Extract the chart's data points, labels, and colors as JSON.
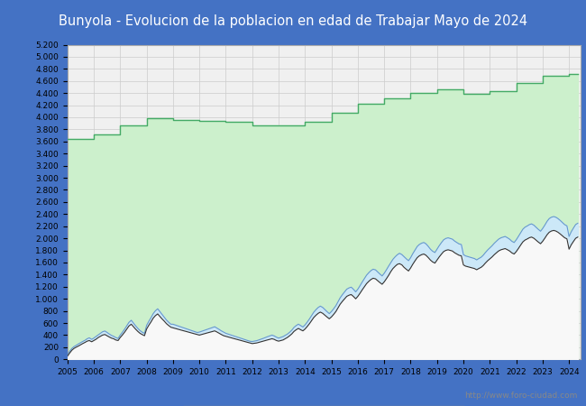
{
  "title": "Bunyola - Evolucion de la poblacion en edad de Trabajar Mayo de 2024",
  "title_bg_color": "#4472C4",
  "title_text_color": "white",
  "title_fontsize": 10.5,
  "ylim": [
    0,
    5200
  ],
  "ytick_step": 200,
  "xmin": 2005,
  "xmax": 2024.42,
  "watermark": "http://www.foro-ciudad.com",
  "grid_color": "#cccccc",
  "plot_bg_color": "#f0f0f0",
  "outer_bg_color": "#4472C4",
  "hab_color": "#ccf0cc",
  "hab_line_color": "#44aa66",
  "parados_color": "#cce8f8",
  "parados_line_color": "#6699cc",
  "ocupados_line_color": "#333333",
  "years_annual": [
    2005,
    2006,
    2007,
    2008,
    2009,
    2010,
    2011,
    2012,
    2013,
    2014,
    2015,
    2016,
    2017,
    2018,
    2019,
    2020,
    2021,
    2022,
    2023,
    2024
  ],
  "hab_16_64_annual": [
    3640,
    3720,
    3860,
    3980,
    3960,
    3940,
    3920,
    3870,
    3860,
    3920,
    4080,
    4230,
    4310,
    4400,
    4460,
    4390,
    4430,
    4570,
    4680,
    4720
  ],
  "years": [
    2005.0,
    2005.08,
    2005.17,
    2005.25,
    2005.33,
    2005.42,
    2005.5,
    2005.58,
    2005.67,
    2005.75,
    2005.83,
    2005.92,
    2006.0,
    2006.08,
    2006.17,
    2006.25,
    2006.33,
    2006.42,
    2006.5,
    2006.58,
    2006.67,
    2006.75,
    2006.83,
    2006.92,
    2007.0,
    2007.08,
    2007.17,
    2007.25,
    2007.33,
    2007.42,
    2007.5,
    2007.58,
    2007.67,
    2007.75,
    2007.83,
    2007.92,
    2008.0,
    2008.08,
    2008.17,
    2008.25,
    2008.33,
    2008.42,
    2008.5,
    2008.58,
    2008.67,
    2008.75,
    2008.83,
    2008.92,
    2009.0,
    2009.08,
    2009.17,
    2009.25,
    2009.33,
    2009.42,
    2009.5,
    2009.58,
    2009.67,
    2009.75,
    2009.83,
    2009.92,
    2010.0,
    2010.08,
    2010.17,
    2010.25,
    2010.33,
    2010.42,
    2010.5,
    2010.58,
    2010.67,
    2010.75,
    2010.83,
    2010.92,
    2011.0,
    2011.08,
    2011.17,
    2011.25,
    2011.33,
    2011.42,
    2011.5,
    2011.58,
    2011.67,
    2011.75,
    2011.83,
    2011.92,
    2012.0,
    2012.08,
    2012.17,
    2012.25,
    2012.33,
    2012.42,
    2012.5,
    2012.58,
    2012.67,
    2012.75,
    2012.83,
    2012.92,
    2013.0,
    2013.08,
    2013.17,
    2013.25,
    2013.33,
    2013.42,
    2013.5,
    2013.58,
    2013.67,
    2013.75,
    2013.83,
    2013.92,
    2014.0,
    2014.08,
    2014.17,
    2014.25,
    2014.33,
    2014.42,
    2014.5,
    2014.58,
    2014.67,
    2014.75,
    2014.83,
    2014.92,
    2015.0,
    2015.08,
    2015.17,
    2015.25,
    2015.33,
    2015.42,
    2015.5,
    2015.58,
    2015.67,
    2015.75,
    2015.83,
    2015.92,
    2016.0,
    2016.08,
    2016.17,
    2016.25,
    2016.33,
    2016.42,
    2016.5,
    2016.58,
    2016.67,
    2016.75,
    2016.83,
    2016.92,
    2017.0,
    2017.08,
    2017.17,
    2017.25,
    2017.33,
    2017.42,
    2017.5,
    2017.58,
    2017.67,
    2017.75,
    2017.83,
    2017.92,
    2018.0,
    2018.08,
    2018.17,
    2018.25,
    2018.33,
    2018.42,
    2018.5,
    2018.58,
    2018.67,
    2018.75,
    2018.83,
    2018.92,
    2019.0,
    2019.08,
    2019.17,
    2019.25,
    2019.33,
    2019.42,
    2019.5,
    2019.58,
    2019.67,
    2019.75,
    2019.83,
    2019.92,
    2020.0,
    2020.08,
    2020.17,
    2020.25,
    2020.33,
    2020.42,
    2020.5,
    2020.58,
    2020.67,
    2020.75,
    2020.83,
    2020.92,
    2021.0,
    2021.08,
    2021.17,
    2021.25,
    2021.33,
    2021.42,
    2021.5,
    2021.58,
    2021.67,
    2021.75,
    2021.83,
    2021.92,
    2022.0,
    2022.08,
    2022.17,
    2022.25,
    2022.33,
    2022.42,
    2022.5,
    2022.58,
    2022.67,
    2022.75,
    2022.83,
    2022.92,
    2023.0,
    2023.08,
    2023.17,
    2023.25,
    2023.33,
    2023.42,
    2023.5,
    2023.58,
    2023.67,
    2023.75,
    2023.83,
    2023.92,
    2024.0,
    2024.08,
    2024.17,
    2024.25,
    2024.33
  ],
  "ocupados": [
    50,
    100,
    150,
    180,
    200,
    220,
    240,
    260,
    280,
    300,
    310,
    290,
    310,
    330,
    360,
    380,
    400,
    410,
    390,
    370,
    350,
    340,
    320,
    310,
    360,
    400,
    450,
    500,
    550,
    580,
    540,
    500,
    460,
    430,
    410,
    390,
    500,
    560,
    620,
    680,
    720,
    750,
    710,
    670,
    630,
    590,
    560,
    530,
    520,
    510,
    500,
    490,
    480,
    470,
    460,
    450,
    440,
    430,
    420,
    410,
    400,
    410,
    420,
    430,
    440,
    450,
    460,
    470,
    450,
    430,
    410,
    390,
    380,
    370,
    360,
    350,
    340,
    330,
    320,
    310,
    300,
    290,
    280,
    270,
    260,
    265,
    270,
    280,
    290,
    300,
    310,
    320,
    330,
    340,
    330,
    310,
    300,
    310,
    320,
    340,
    360,
    390,
    420,
    460,
    490,
    510,
    490,
    470,
    500,
    540,
    590,
    640,
    690,
    730,
    760,
    780,
    760,
    730,
    700,
    670,
    700,
    740,
    790,
    850,
    910,
    960,
    1000,
    1040,
    1060,
    1070,
    1040,
    1000,
    1040,
    1090,
    1150,
    1200,
    1250,
    1290,
    1320,
    1340,
    1330,
    1300,
    1270,
    1240,
    1280,
    1330,
    1390,
    1450,
    1500,
    1540,
    1570,
    1580,
    1560,
    1520,
    1490,
    1460,
    1510,
    1570,
    1630,
    1680,
    1710,
    1730,
    1740,
    1720,
    1680,
    1640,
    1610,
    1590,
    1640,
    1690,
    1740,
    1780,
    1800,
    1810,
    1800,
    1790,
    1760,
    1740,
    1720,
    1710,
    1560,
    1540,
    1530,
    1520,
    1510,
    1500,
    1480,
    1500,
    1520,
    1550,
    1590,
    1630,
    1660,
    1690,
    1730,
    1760,
    1790,
    1810,
    1820,
    1830,
    1810,
    1790,
    1760,
    1740,
    1780,
    1830,
    1890,
    1940,
    1970,
    1990,
    2010,
    2020,
    2000,
    1970,
    1940,
    1910,
    1950,
    2000,
    2060,
    2100,
    2120,
    2130,
    2120,
    2100,
    2070,
    2040,
    2010,
    1990,
    1820,
    1890,
    1950,
    2000,
    2020
  ],
  "parados": [
    80,
    130,
    180,
    210,
    230,
    255,
    275,
    295,
    315,
    340,
    355,
    330,
    350,
    375,
    405,
    430,
    455,
    468,
    445,
    420,
    395,
    380,
    360,
    345,
    400,
    445,
    500,
    555,
    610,
    645,
    600,
    555,
    510,
    475,
    450,
    428,
    560,
    625,
    690,
    755,
    800,
    835,
    790,
    745,
    695,
    650,
    615,
    580,
    580,
    568,
    555,
    543,
    530,
    518,
    505,
    493,
    480,
    468,
    455,
    443,
    450,
    462,
    475,
    488,
    500,
    513,
    525,
    538,
    515,
    493,
    470,
    448,
    430,
    418,
    406,
    394,
    382,
    370,
    358,
    346,
    334,
    322,
    310,
    298,
    294,
    300,
    308,
    320,
    333,
    346,
    360,
    374,
    387,
    400,
    387,
    365,
    350,
    362,
    376,
    396,
    416,
    448,
    482,
    526,
    559,
    581,
    558,
    534,
    568,
    613,
    669,
    724,
    778,
    823,
    857,
    879,
    857,
    823,
    789,
    755,
    790,
    833,
    887,
    952,
    1016,
    1071,
    1115,
    1159,
    1181,
    1192,
    1159,
    1115,
    1159,
    1214,
    1280,
    1335,
    1390,
    1434,
    1467,
    1489,
    1478,
    1445,
    1412,
    1378,
    1422,
    1477,
    1543,
    1598,
    1653,
    1697,
    1730,
    1752,
    1730,
    1697,
    1663,
    1630,
    1680,
    1745,
    1810,
    1865,
    1898,
    1920,
    1931,
    1909,
    1865,
    1820,
    1787,
    1765,
    1820,
    1876,
    1931,
    1975,
    1997,
    2008,
    1997,
    1986,
    1953,
    1930,
    1908,
    1897,
    1730,
    1709,
    1698,
    1687,
    1676,
    1665,
    1643,
    1665,
    1687,
    1720,
    1764,
    1808,
    1841,
    1875,
    1919,
    1952,
    1985,
    2008,
    2019,
    2030,
    2008,
    1985,
    1952,
    1930,
    1975,
    2030,
    2095,
    2150,
    2183,
    2205,
    2227,
    2238,
    2216,
    2183,
    2150,
    2117,
    2162,
    2216,
    2282,
    2326,
    2348,
    2359,
    2348,
    2326,
    2293,
    2260,
    2227,
    2205,
    2030,
    2106,
    2172,
    2227,
    2249
  ]
}
